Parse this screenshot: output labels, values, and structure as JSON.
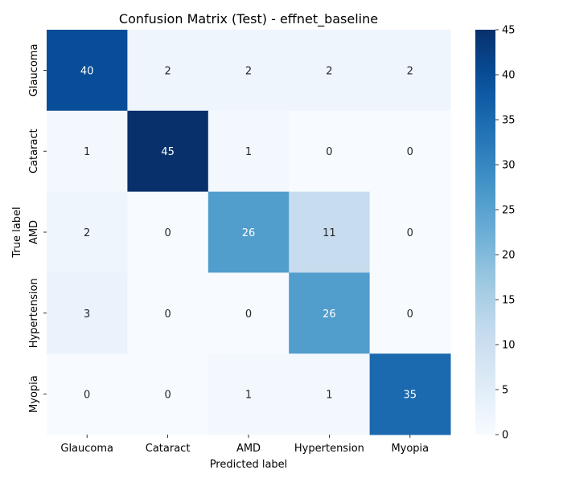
{
  "chart_data": {
    "type": "heatmap",
    "title": "Confusion Matrix (Test) - effnet_baseline",
    "xlabel": "Predicted label",
    "ylabel": "True label",
    "x_categories": [
      "Glaucoma",
      "Cataract",
      "AMD",
      "Hypertension",
      "Myopia"
    ],
    "y_categories": [
      "Glaucoma",
      "Cataract",
      "AMD",
      "Hypertension",
      "Myopia"
    ],
    "values": [
      [
        40,
        2,
        2,
        2,
        2
      ],
      [
        1,
        45,
        1,
        0,
        0
      ],
      [
        2,
        0,
        26,
        11,
        0
      ],
      [
        3,
        0,
        0,
        26,
        0
      ],
      [
        0,
        0,
        1,
        1,
        35
      ]
    ],
    "colormap": "Blues",
    "colorbar": {
      "range": [
        0,
        45
      ],
      "ticks": [
        0,
        5,
        10,
        15,
        20,
        25,
        30,
        35,
        40,
        45
      ]
    },
    "annotation_colors": {
      "dark_cell": "#ffffff",
      "light_cell": "#262626"
    }
  }
}
